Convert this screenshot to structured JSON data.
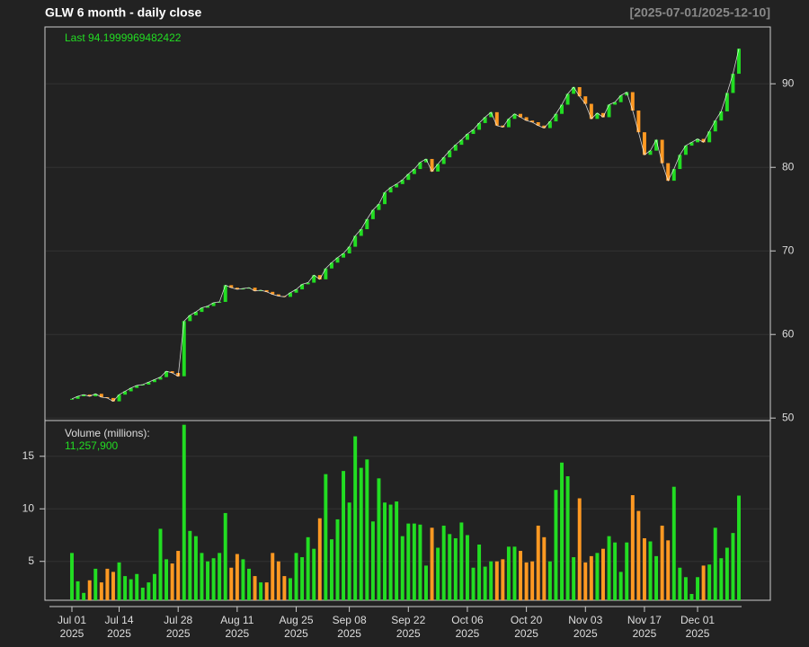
{
  "chart_data": {
    "type": "candlestick",
    "title": "GLW  6 month - daily close",
    "range_label": "[2025-07-01/2025-12-10]",
    "last_label": "Last 94.1999969482422",
    "up_color": "#22dd22",
    "down_color": "#ff9922",
    "line_color": "#ffffff",
    "grid": true,
    "categories": [
      "Jul 01",
      null,
      null,
      null,
      null,
      null,
      null,
      null,
      "Jul 14",
      null,
      null,
      null,
      null,
      null,
      null,
      null,
      null,
      null,
      "Jul 28",
      null,
      null,
      null,
      null,
      null,
      null,
      null,
      null,
      null,
      "Aug 11",
      null,
      null,
      null,
      null,
      null,
      null,
      null,
      null,
      null,
      "Aug 25",
      null,
      null,
      null,
      null,
      null,
      null,
      null,
      null,
      "Sep 08",
      null,
      null,
      null,
      null,
      null,
      null,
      null,
      null,
      null,
      "Sep 22",
      null,
      null,
      null,
      null,
      null,
      null,
      null,
      null,
      null,
      "Oct 06",
      null,
      null,
      null,
      null,
      null,
      null,
      null,
      null,
      null,
      "Oct 20",
      null,
      null,
      null,
      null,
      null,
      null,
      null,
      null,
      null,
      "Nov 03",
      null,
      null,
      null,
      null,
      null,
      null,
      null,
      null,
      null,
      "Nov 17",
      null,
      null,
      null,
      null,
      null,
      null,
      null,
      null,
      "Dec 01",
      null,
      null,
      null,
      null,
      null,
      null,
      null
    ],
    "x_sublabel": "2025",
    "values": [
      52.3,
      52.6,
      52.8,
      52.6,
      52.9,
      52.5,
      52.4,
      52.0,
      52.8,
      53.2,
      53.6,
      53.9,
      54.0,
      54.3,
      54.6,
      54.9,
      55.6,
      55.4,
      55.0,
      61.6,
      62.3,
      62.7,
      63.2,
      63.4,
      63.8,
      63.9,
      65.9,
      65.6,
      65.4,
      65.5,
      65.6,
      65.2,
      65.3,
      65.1,
      64.8,
      64.6,
      64.5,
      65.0,
      65.4,
      66.0,
      66.2,
      67.1,
      66.6,
      67.9,
      68.6,
      69.2,
      69.7,
      70.5,
      71.8,
      72.6,
      73.8,
      74.9,
      75.6,
      77.0,
      77.6,
      78.0,
      78.5,
      79.2,
      79.8,
      80.6,
      81.0,
      79.5,
      80.4,
      81.2,
      82.0,
      82.7,
      83.3,
      84.0,
      84.5,
      85.3,
      86.0,
      86.6,
      85.0,
      84.8,
      85.8,
      86.4,
      86.0,
      85.6,
      85.4,
      85.0,
      84.7,
      85.5,
      86.4,
      87.5,
      88.8,
      89.6,
      88.5,
      87.6,
      85.8,
      86.5,
      86.0,
      87.5,
      87.8,
      88.6,
      89.0,
      86.8,
      84.2,
      81.5,
      82.0,
      83.3,
      80.5,
      78.4,
      79.8,
      81.5,
      82.6,
      83.0,
      83.4,
      83.0,
      84.3,
      85.6,
      86.7,
      88.9,
      91.2,
      94.1999969482422
    ],
    "ylim": [
      49.7,
      96.8
    ],
    "yticks": [
      50,
      60,
      70,
      80,
      90
    ],
    "volume": {
      "label": "Volume (millions):",
      "value_label": "11,257,900",
      "ylim": [
        1.3,
        18.4
      ],
      "yticks": [
        5,
        10,
        15
      ],
      "values": [
        5.8,
        3.1,
        2.0,
        3.2,
        4.3,
        3.0,
        4.3,
        4.0,
        4.9,
        3.6,
        3.3,
        3.8,
        2.5,
        3.0,
        3.8,
        8.1,
        5.2,
        4.8,
        6.0,
        18.0,
        7.9,
        7.4,
        5.8,
        5.0,
        5.3,
        5.8,
        9.6,
        4.4,
        5.7,
        5.2,
        4.3,
        3.6,
        3.0,
        3.0,
        5.8,
        5.0,
        3.6,
        3.4,
        5.8,
        5.4,
        7.3,
        6.2,
        9.1,
        13.3,
        7.1,
        9.0,
        13.6,
        10.6,
        16.9,
        13.9,
        14.7,
        8.8,
        12.9,
        10.6,
        10.4,
        10.7,
        7.4,
        8.6,
        8.6,
        8.5,
        4.6,
        8.2,
        6.3,
        8.4,
        7.6,
        7.2,
        8.7,
        7.5,
        4.4,
        6.6,
        4.5,
        5.0,
        5.0,
        5.2,
        6.4,
        6.4,
        6.0,
        4.9,
        5.0,
        8.4,
        7.3,
        5.0,
        11.8,
        14.4,
        13.1,
        5.4,
        11.0,
        4.9,
        5.5,
        5.8,
        6.2,
        7.4,
        6.8,
        4.0,
        6.8,
        11.3,
        9.8,
        7.2,
        6.9,
        5.5,
        8.4,
        7.0,
        12.1,
        4.4,
        3.5,
        1.9,
        3.5,
        4.6,
        4.7,
        8.2,
        5.3,
        6.3,
        7.7,
        11.2579
      ]
    }
  }
}
